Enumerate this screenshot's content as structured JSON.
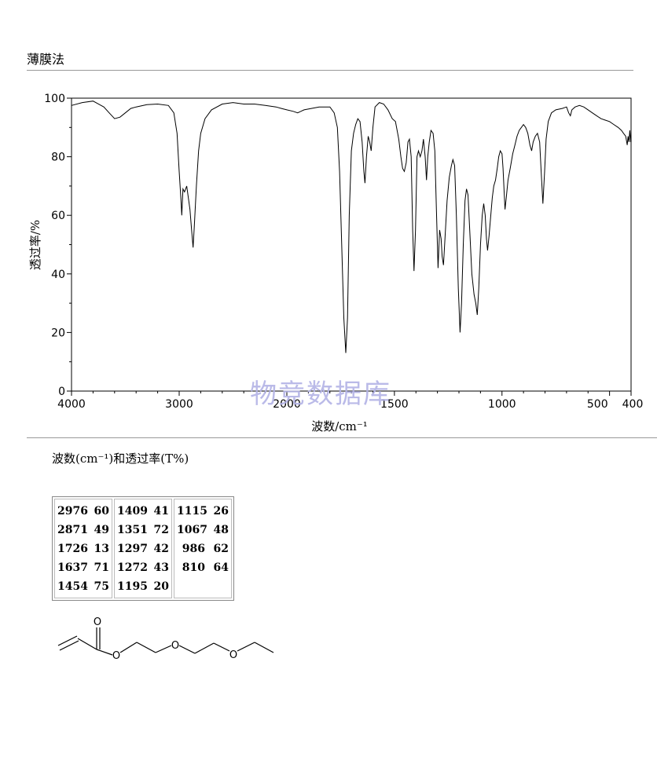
{
  "page": {
    "method": "薄膜法",
    "watermark": "物竞数据库"
  },
  "peaks_caption": "波数(cm⁻¹)和透过率(T%)",
  "peak_table": {
    "columns": [
      [
        {
          "w": "2976",
          "t": "60"
        },
        {
          "w": "2871",
          "t": "49"
        },
        {
          "w": "1726",
          "t": "13"
        },
        {
          "w": "1637",
          "t": "71"
        },
        {
          "w": "1454",
          "t": "75"
        }
      ],
      [
        {
          "w": "1409",
          "t": "41"
        },
        {
          "w": "1351",
          "t": "72"
        },
        {
          "w": "1297",
          "t": "42"
        },
        {
          "w": "1272",
          "t": "43"
        },
        {
          "w": "1195",
          "t": "20"
        }
      ],
      [
        {
          "w": "1115",
          "t": "26"
        },
        {
          "w": "1067",
          "t": "48"
        },
        {
          "w": "986",
          "t": "62"
        },
        {
          "w": "810",
          "t": "64"
        }
      ]
    ]
  },
  "structure": {
    "atom_labels": [
      "O",
      "O",
      "O",
      "O"
    ]
  },
  "chart_data": {
    "type": "line",
    "xlabel": "波数/cm⁻¹",
    "ylabel": "透过率/%",
    "xlim": [
      4000,
      400
    ],
    "ylim": [
      0,
      100
    ],
    "x_ticks": [
      "4000",
      "3000",
      "2000",
      "1500",
      "1000",
      "500",
      "400"
    ],
    "y_ticks": [
      "0",
      "20",
      "40",
      "60",
      "80",
      "100"
    ],
    "series": [
      {
        "points": [
          [
            4000,
            97.5
          ],
          [
            3900,
            98.5
          ],
          [
            3800,
            99
          ],
          [
            3700,
            97
          ],
          [
            3650,
            95
          ],
          [
            3600,
            93
          ],
          [
            3550,
            93.5
          ],
          [
            3500,
            95
          ],
          [
            3450,
            96.5
          ],
          [
            3400,
            97
          ],
          [
            3300,
            97.8
          ],
          [
            3200,
            98
          ],
          [
            3100,
            97.5
          ],
          [
            3050,
            95
          ],
          [
            3020,
            88
          ],
          [
            3000,
            75
          ],
          [
            2985,
            66
          ],
          [
            2976,
            60
          ],
          [
            2965,
            69
          ],
          [
            2950,
            68
          ],
          [
            2930,
            70
          ],
          [
            2900,
            62
          ],
          [
            2885,
            55
          ],
          [
            2871,
            49
          ],
          [
            2860,
            56
          ],
          [
            2840,
            70
          ],
          [
            2820,
            82
          ],
          [
            2800,
            88
          ],
          [
            2760,
            93
          ],
          [
            2700,
            96
          ],
          [
            2600,
            98
          ],
          [
            2500,
            98.5
          ],
          [
            2400,
            98
          ],
          [
            2300,
            98
          ],
          [
            2200,
            97.5
          ],
          [
            2100,
            97
          ],
          [
            2050,
            96.5
          ],
          [
            2000,
            96
          ],
          [
            1970,
            95.5
          ],
          [
            1950,
            95
          ],
          [
            1920,
            96
          ],
          [
            1850,
            97
          ],
          [
            1800,
            97
          ],
          [
            1780,
            95
          ],
          [
            1765,
            90
          ],
          [
            1755,
            75
          ],
          [
            1745,
            50
          ],
          [
            1735,
            25
          ],
          [
            1726,
            13
          ],
          [
            1718,
            25
          ],
          [
            1710,
            60
          ],
          [
            1700,
            82
          ],
          [
            1690,
            88
          ],
          [
            1680,
            91
          ],
          [
            1670,
            93
          ],
          [
            1660,
            92
          ],
          [
            1650,
            85
          ],
          [
            1642,
            75
          ],
          [
            1637,
            71
          ],
          [
            1630,
            80
          ],
          [
            1622,
            87
          ],
          [
            1615,
            85
          ],
          [
            1608,
            82
          ],
          [
            1600,
            90
          ],
          [
            1590,
            97
          ],
          [
            1570,
            98.5
          ],
          [
            1550,
            98
          ],
          [
            1530,
            96
          ],
          [
            1510,
            93
          ],
          [
            1495,
            92
          ],
          [
            1480,
            86
          ],
          [
            1470,
            80
          ],
          [
            1462,
            76
          ],
          [
            1454,
            75
          ],
          [
            1445,
            78
          ],
          [
            1437,
            85
          ],
          [
            1430,
            86
          ],
          [
            1422,
            80
          ],
          [
            1415,
            55
          ],
          [
            1409,
            41
          ],
          [
            1402,
            55
          ],
          [
            1395,
            80
          ],
          [
            1388,
            82
          ],
          [
            1380,
            80
          ],
          [
            1372,
            82
          ],
          [
            1365,
            86
          ],
          [
            1357,
            80
          ],
          [
            1351,
            72
          ],
          [
            1345,
            80
          ],
          [
            1338,
            85
          ],
          [
            1330,
            89
          ],
          [
            1320,
            88
          ],
          [
            1312,
            82
          ],
          [
            1305,
            62
          ],
          [
            1297,
            42
          ],
          [
            1290,
            55
          ],
          [
            1283,
            52
          ],
          [
            1278,
            46
          ],
          [
            1272,
            43
          ],
          [
            1265,
            52
          ],
          [
            1255,
            65
          ],
          [
            1245,
            73
          ],
          [
            1235,
            77
          ],
          [
            1228,
            79
          ],
          [
            1220,
            77
          ],
          [
            1212,
            60
          ],
          [
            1203,
            35
          ],
          [
            1195,
            20
          ],
          [
            1188,
            30
          ],
          [
            1180,
            50
          ],
          [
            1172,
            65
          ],
          [
            1165,
            69
          ],
          [
            1158,
            67
          ],
          [
            1150,
            55
          ],
          [
            1140,
            40
          ],
          [
            1130,
            33
          ],
          [
            1122,
            30
          ],
          [
            1115,
            26
          ],
          [
            1108,
            35
          ],
          [
            1100,
            50
          ],
          [
            1092,
            60
          ],
          [
            1085,
            64
          ],
          [
            1078,
            60
          ],
          [
            1072,
            52
          ],
          [
            1067,
            48
          ],
          [
            1060,
            53
          ],
          [
            1052,
            60
          ],
          [
            1045,
            66
          ],
          [
            1038,
            70
          ],
          [
            1030,
            72
          ],
          [
            1022,
            76
          ],
          [
            1015,
            80
          ],
          [
            1008,
            82
          ],
          [
            1000,
            81
          ],
          [
            995,
            76
          ],
          [
            990,
            68
          ],
          [
            986,
            62
          ],
          [
            980,
            66
          ],
          [
            972,
            72
          ],
          [
            962,
            76
          ],
          [
            950,
            81
          ],
          [
            940,
            84
          ],
          [
            930,
            87
          ],
          [
            920,
            89
          ],
          [
            910,
            90
          ],
          [
            900,
            91
          ],
          [
            890,
            90
          ],
          [
            880,
            88
          ],
          [
            870,
            84
          ],
          [
            862,
            82
          ],
          [
            855,
            85
          ],
          [
            845,
            87
          ],
          [
            835,
            88
          ],
          [
            825,
            85
          ],
          [
            818,
            75
          ],
          [
            810,
            64
          ],
          [
            802,
            75
          ],
          [
            795,
            86
          ],
          [
            785,
            92
          ],
          [
            770,
            95
          ],
          [
            750,
            96
          ],
          [
            720,
            96.5
          ],
          [
            700,
            97
          ],
          [
            690,
            95
          ],
          [
            682,
            94
          ],
          [
            675,
            96
          ],
          [
            660,
            97
          ],
          [
            640,
            97.5
          ],
          [
            620,
            97
          ],
          [
            600,
            96
          ],
          [
            580,
            95
          ],
          [
            560,
            94
          ],
          [
            540,
            93
          ],
          [
            520,
            92.5
          ],
          [
            500,
            92
          ],
          [
            480,
            91
          ],
          [
            460,
            90
          ],
          [
            445,
            89
          ],
          [
            435,
            88
          ],
          [
            425,
            87
          ],
          [
            418,
            84
          ],
          [
            414,
            87
          ],
          [
            410,
            85
          ],
          [
            406,
            89
          ],
          [
            402,
            85
          ],
          [
            400,
            87
          ]
        ]
      }
    ]
  }
}
